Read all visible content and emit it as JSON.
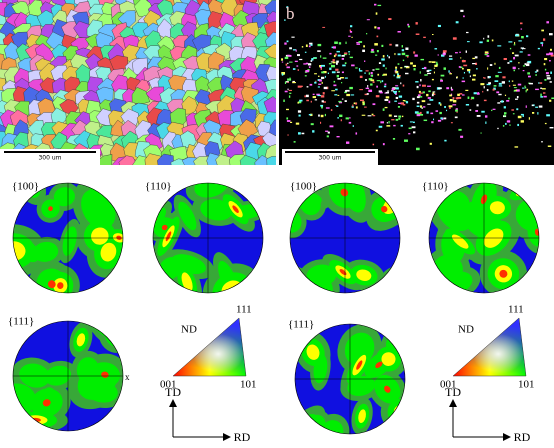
{
  "panel_a": {
    "scale_bar": "300 um"
  },
  "panel_b": {
    "label": "b",
    "scale_bar": "300 um"
  },
  "pole_figures": [
    {
      "p100": "{100}",
      "p110": "{110}",
      "p111": "{111}",
      "axis": "x"
    },
    {
      "p100": "{100}",
      "p110": "{110}",
      "p111": "{111}"
    }
  ],
  "ipf_legend": [
    {
      "top": "111",
      "left": "001",
      "right": "101",
      "normal": "ND"
    },
    {
      "top": "111",
      "left": "001",
      "right": "101",
      "normal": "ND"
    }
  ],
  "sample_axes": [
    {
      "vertical": "TD",
      "horizontal": "RD"
    },
    {
      "vertical": "TD",
      "horizontal": "RD"
    }
  ]
}
